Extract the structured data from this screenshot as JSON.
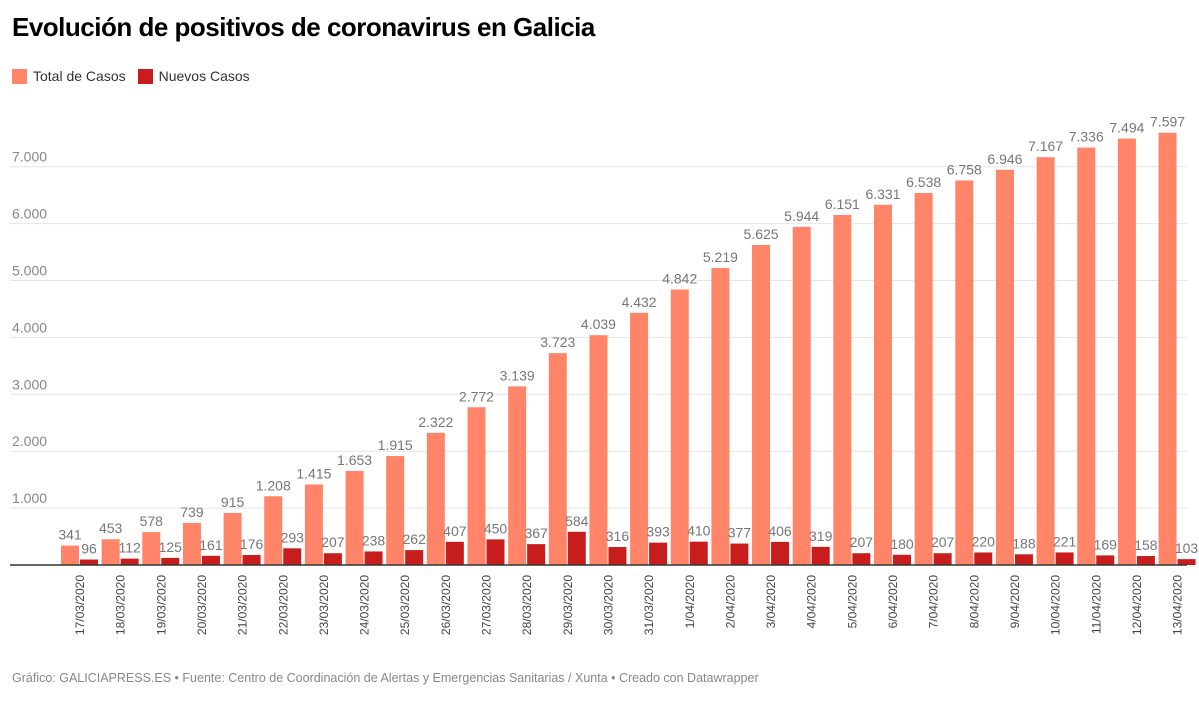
{
  "chart_data": {
    "type": "bar",
    "title": "Evolución de positivos de coronavirus en Galicia",
    "categories": [
      "17/03/2020",
      "18/03/2020",
      "19/03/2020",
      "20/03/2020",
      "21/03/2020",
      "22/03/2020",
      "23/03/2020",
      "24/03/2020",
      "25/03/2020",
      "26/03/2020",
      "27/03/2020",
      "28/03/2020",
      "29/03/2020",
      "30/03/2020",
      "31/03/2020",
      "1/04/2020",
      "2/04/2020",
      "3/04/2020",
      "4/04/2020",
      "5/04/2020",
      "6/04/2020",
      "7/04/2020",
      "8/04/2020",
      "9/04/2020",
      "10/04/2020",
      "11/04/2020",
      "12/04/2020",
      "13/04/2020"
    ],
    "series": [
      {
        "name": "Total de Casos",
        "color": "#ff8468",
        "values": [
          341,
          453,
          578,
          739,
          915,
          1208,
          1415,
          1653,
          1915,
          2322,
          2772,
          3139,
          3723,
          4039,
          4432,
          4842,
          5219,
          5625,
          5944,
          6151,
          6331,
          6538,
          6758,
          6946,
          7167,
          7336,
          7494,
          7597
        ]
      },
      {
        "name": "Nuevos Casos",
        "color": "#c71e1d",
        "values": [
          96,
          112,
          125,
          161,
          176,
          293,
          207,
          238,
          262,
          407,
          450,
          367,
          584,
          316,
          393,
          410,
          377,
          406,
          319,
          207,
          180,
          207,
          220,
          188,
          221,
          169,
          158,
          103
        ]
      }
    ],
    "yticks": [
      1000,
      2000,
      3000,
      4000,
      5000,
      6000,
      7000
    ],
    "ylim": [
      0,
      7600
    ],
    "grid": true,
    "legend_position": "top-left",
    "xlabel": "",
    "ylabel": ""
  },
  "footer": "Gráfico: GALICIAPRESS.ES • Fuente: Centro de Coordinación de Alertas y Emergencias Sanitarias / Xunta • Creado con Datawrapper"
}
